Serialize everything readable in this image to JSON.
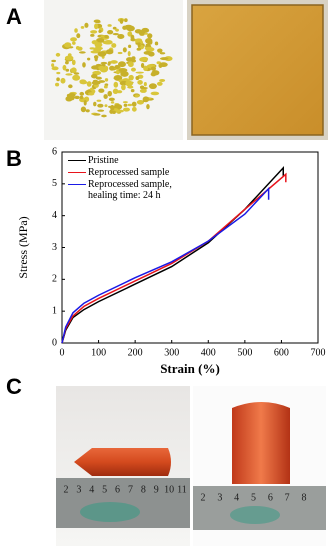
{
  "panel_labels": [
    "A",
    "B",
    "C"
  ],
  "chart_data": {
    "type": "line",
    "x_label": "Strain (%)",
    "y_label": "Stress (MPa)",
    "xlim": [
      0,
      700
    ],
    "xticks": [
      0,
      100,
      200,
      300,
      400,
      500,
      600,
      700
    ],
    "ylim": [
      0,
      6
    ],
    "yticks": [
      0,
      1,
      2,
      3,
      4,
      5,
      6
    ],
    "grid": false,
    "legend": "upper left",
    "series": [
      {
        "name": "Pristine",
        "color": "#000000",
        "x": [
          0,
          10,
          30,
          60,
          100,
          200,
          300,
          400,
          500,
          605,
          605
        ],
        "values": [
          0,
          0.4,
          0.8,
          1.05,
          1.3,
          1.85,
          2.4,
          3.15,
          4.2,
          5.5,
          5.25
        ]
      },
      {
        "name": "Reprocessed sample",
        "color": "#e8141c",
        "x": [
          0,
          10,
          30,
          60,
          100,
          200,
          300,
          400,
          500,
          612,
          612
        ],
        "values": [
          0,
          0.45,
          0.85,
          1.15,
          1.4,
          1.95,
          2.5,
          3.2,
          4.2,
          5.3,
          5.05
        ]
      },
      {
        "name": "Reprocessed sample, healing time: 24 h",
        "color": "#1a1ae6",
        "x": [
          0,
          10,
          30,
          60,
          100,
          200,
          300,
          400,
          500,
          565,
          565
        ],
        "values": [
          0,
          0.5,
          0.95,
          1.25,
          1.5,
          2.05,
          2.55,
          3.2,
          4.05,
          4.85,
          4.5
        ]
      }
    ]
  },
  "rulers": [
    [
      "2",
      "3",
      "4",
      "5",
      "6",
      "7",
      "8",
      "9",
      "10",
      "11"
    ],
    [
      "2",
      "3",
      "4",
      "5",
      "6",
      "7",
      "8"
    ]
  ]
}
